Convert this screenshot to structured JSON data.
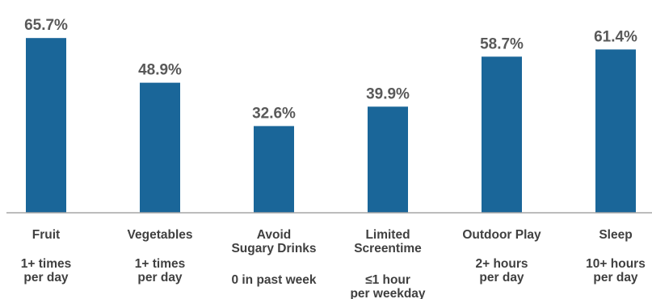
{
  "chart_data": {
    "type": "bar",
    "title": "",
    "xlabel": "",
    "ylabel": "",
    "ylim": [
      0,
      70
    ],
    "unit": "%",
    "grid": false,
    "legend": "none",
    "bar_color": "#1a6699",
    "axis_color": "#a6a6a6",
    "categories": [
      {
        "name": [
          "Fruit"
        ],
        "detail": [
          "1+ times",
          "per day"
        ],
        "value": 65.7,
        "value_label": "65.7%"
      },
      {
        "name": [
          "Vegetables"
        ],
        "detail": [
          "1+ times",
          "per day"
        ],
        "value": 48.9,
        "value_label": "48.9%"
      },
      {
        "name": [
          "Avoid",
          "Sugary Drinks"
        ],
        "detail": [
          "0 in past week"
        ],
        "value": 32.6,
        "value_label": "32.6%"
      },
      {
        "name": [
          "Limited",
          "Screentime"
        ],
        "detail": [
          "≤1 hour",
          "per weekday"
        ],
        "value": 39.9,
        "value_label": "39.9%"
      },
      {
        "name": [
          "Outdoor Play"
        ],
        "detail": [
          "2+ hours",
          "per day"
        ],
        "value": 58.7,
        "value_label": "58.7%"
      },
      {
        "name": [
          "Sleep"
        ],
        "detail": [
          "10+ hours",
          "per day"
        ],
        "value": 61.4,
        "value_label": "61.4%"
      }
    ]
  }
}
